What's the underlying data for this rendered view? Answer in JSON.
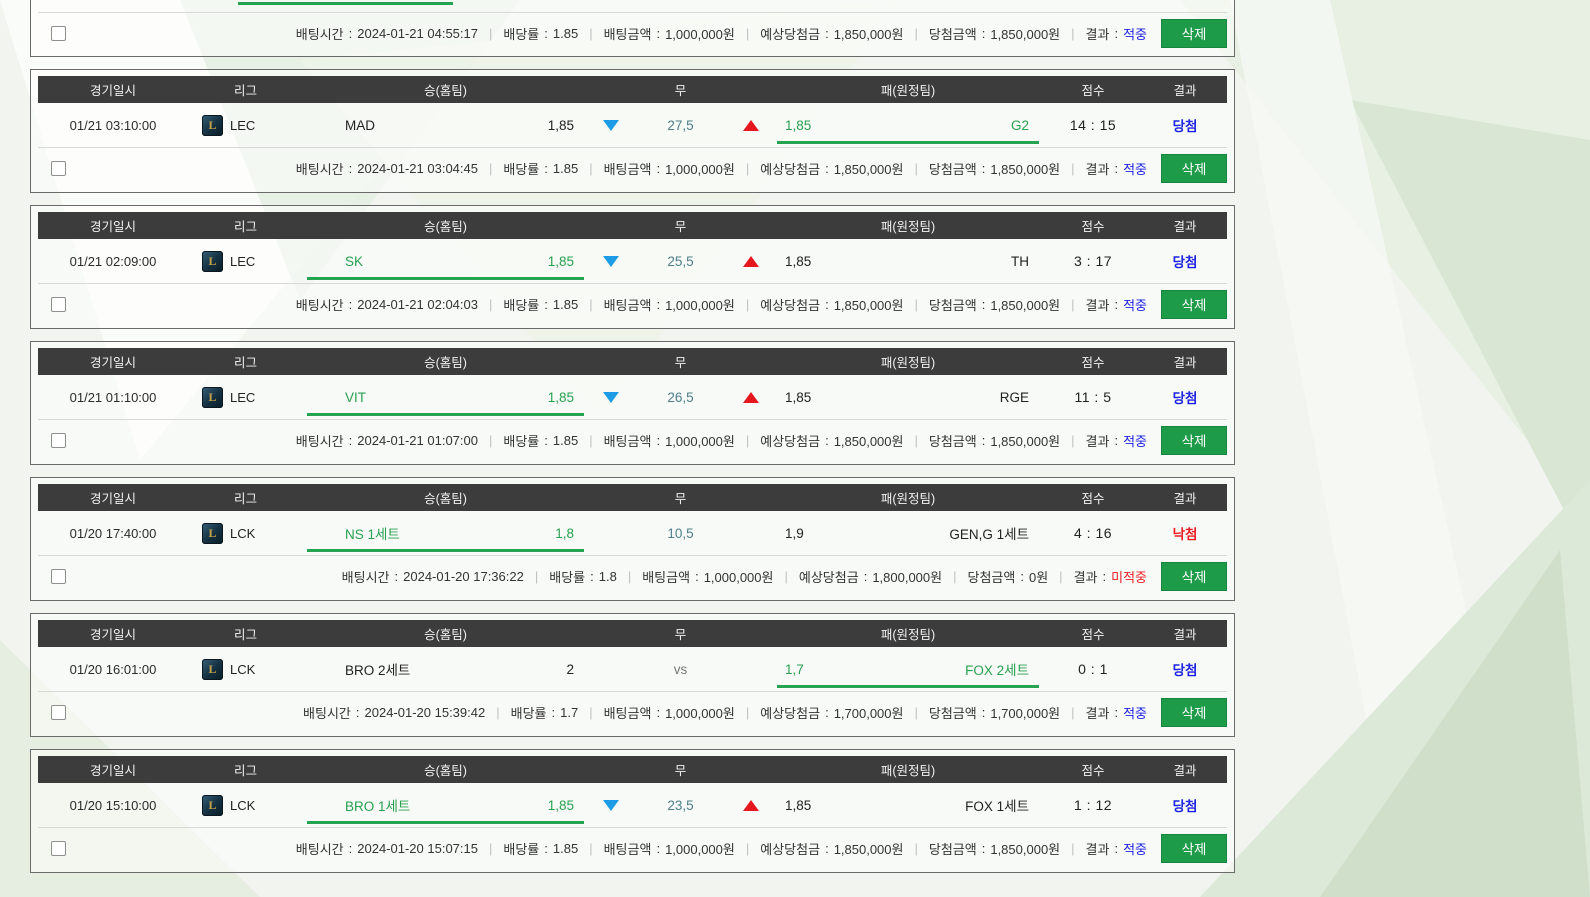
{
  "colors": {
    "header_bg": "#3c3c3c",
    "accent_green": "#1d9b49",
    "underline_green": "#24a350",
    "win_blue": "#1c22e0",
    "lose_red": "#ea1c23",
    "draw_teal": "#4d7e8c",
    "vs_gray": "#777777",
    "trend_down_blue": "#1e9be6",
    "trend_up_red": "#e5161d"
  },
  "league_icon_letter": "L",
  "labels": {
    "col_datetime": "경기일시",
    "col_league": "리그",
    "col_home": "승(홈팀)",
    "col_draw": "무",
    "col_away": "패(원정팀)",
    "col_score": "점수",
    "col_result": "결과",
    "bet_time": "배팅시간",
    "odds_rate": "배당률",
    "bet_amount": "배팅금액",
    "expected_win": "예상당첨금",
    "win_amount": "당첨금액",
    "result": "결과",
    "delete": "삭제",
    "sep": "|",
    "colon": ":"
  },
  "partial_card": {
    "footer": {
      "bet_time": "2024-01-21 04:55:17",
      "odds_rate": "1.85",
      "bet_amount": "1,000,000원",
      "expected_win": "1,850,000원",
      "win_amount": "1,850,000원",
      "result": "적중",
      "result_color": "#1c22e0"
    }
  },
  "cards": [
    {
      "match": {
        "datetime": "01/21 03:10:00",
        "league": "LEC",
        "home_team": "MAD",
        "home_odds": "1,85",
        "home_selected": false,
        "home_trend": "down",
        "draw": "27,5",
        "draw_color": "#4d7e8c",
        "draw_trend": "up",
        "away_odds": "1,85",
        "away_team": "G2",
        "away_selected": true,
        "score": "14 : 15",
        "result": "당첨",
        "result_color": "#1c22e0"
      },
      "footer": {
        "bet_time": "2024-01-21 03:04:45",
        "odds_rate": "1.85",
        "bet_amount": "1,000,000원",
        "expected_win": "1,850,000원",
        "win_amount": "1,850,000원",
        "result": "적중",
        "result_color": "#1c22e0"
      }
    },
    {
      "match": {
        "datetime": "01/21 02:09:00",
        "league": "LEC",
        "home_team": "SK",
        "home_odds": "1,85",
        "home_selected": true,
        "home_trend": "down",
        "draw": "25,5",
        "draw_color": "#4d7e8c",
        "draw_trend": "up",
        "away_odds": "1,85",
        "away_team": "TH",
        "away_selected": false,
        "score": "3 : 17",
        "result": "당첨",
        "result_color": "#1c22e0"
      },
      "footer": {
        "bet_time": "2024-01-21 02:04:03",
        "odds_rate": "1.85",
        "bet_amount": "1,000,000원",
        "expected_win": "1,850,000원",
        "win_amount": "1,850,000원",
        "result": "적중",
        "result_color": "#1c22e0"
      }
    },
    {
      "match": {
        "datetime": "01/21 01:10:00",
        "league": "LEC",
        "home_team": "VIT",
        "home_odds": "1,85",
        "home_selected": true,
        "home_trend": "down",
        "draw": "26,5",
        "draw_color": "#4d7e8c",
        "draw_trend": "up",
        "away_odds": "1,85",
        "away_team": "RGE",
        "away_selected": false,
        "score": "11 : 5",
        "result": "당첨",
        "result_color": "#1c22e0"
      },
      "footer": {
        "bet_time": "2024-01-21 01:07:00",
        "odds_rate": "1.85",
        "bet_amount": "1,000,000원",
        "expected_win": "1,850,000원",
        "win_amount": "1,850,000원",
        "result": "적중",
        "result_color": "#1c22e0"
      }
    },
    {
      "match": {
        "datetime": "01/20 17:40:00",
        "league": "LCK",
        "home_team": "NS 1세트",
        "home_odds": "1,8",
        "home_selected": true,
        "home_trend": "",
        "draw": "10,5",
        "draw_color": "#4d7e8c",
        "draw_trend": "",
        "away_odds": "1,9",
        "away_team": "GEN,G 1세트",
        "away_selected": false,
        "score": "4 : 16",
        "result": "낙첨",
        "result_color": "#ea1c23"
      },
      "footer": {
        "bet_time": "2024-01-20 17:36:22",
        "odds_rate": "1.8",
        "bet_amount": "1,000,000원",
        "expected_win": "1,800,000원",
        "win_amount": "0원",
        "result": "미적중",
        "result_color": "#ea1c23"
      }
    },
    {
      "match": {
        "datetime": "01/20 16:01:00",
        "league": "LCK",
        "home_team": "BRO 2세트",
        "home_odds": "2",
        "home_selected": false,
        "home_trend": "",
        "draw": "vs",
        "draw_color": "#777777",
        "draw_trend": "",
        "away_odds": "1,7",
        "away_team": "FOX 2세트",
        "away_selected": true,
        "score": "0 : 1",
        "result": "당첨",
        "result_color": "#1c22e0"
      },
      "footer": {
        "bet_time": "2024-01-20 15:39:42",
        "odds_rate": "1.7",
        "bet_amount": "1,000,000원",
        "expected_win": "1,700,000원",
        "win_amount": "1,700,000원",
        "result": "적중",
        "result_color": "#1c22e0"
      }
    },
    {
      "match": {
        "datetime": "01/20 15:10:00",
        "league": "LCK",
        "home_team": "BRO 1세트",
        "home_odds": "1,85",
        "home_selected": true,
        "home_trend": "down",
        "draw": "23,5",
        "draw_color": "#4d7e8c",
        "draw_trend": "up",
        "away_odds": "1,85",
        "away_team": "FOX 1세트",
        "away_selected": false,
        "score": "1 : 12",
        "result": "당첨",
        "result_color": "#1c22e0"
      },
      "footer": {
        "bet_time": "2024-01-20 15:07:15",
        "odds_rate": "1.85",
        "bet_amount": "1,000,000원",
        "expected_win": "1,850,000원",
        "win_amount": "1,850,000원",
        "result": "적중",
        "result_color": "#1c22e0"
      }
    }
  ]
}
